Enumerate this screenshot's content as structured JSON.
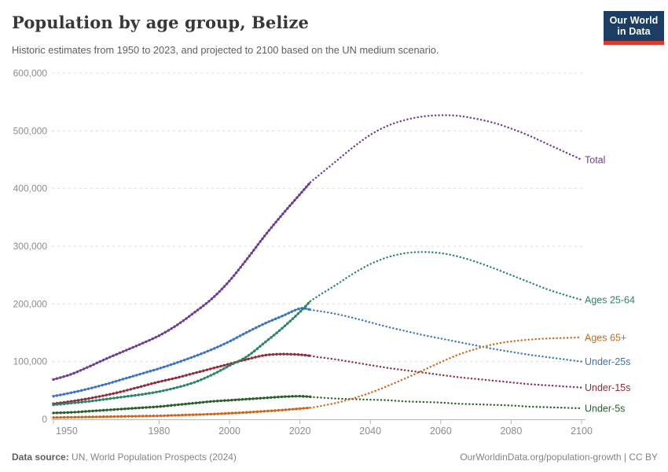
{
  "header": {
    "title": "Population by age group, Belize",
    "subtitle": "Historic estimates from 1950 to 2023, and projected to 2100 based on the UN medium scenario.",
    "logo": {
      "line1": "Our World",
      "line2": "in Data"
    }
  },
  "footer": {
    "source_label": "Data source:",
    "source_text": " UN, World Population Prospects (2024)",
    "credit": "OurWorldinData.org/population-growth | CC BY"
  },
  "chart_data": {
    "type": "line",
    "title": "Population by age group, Belize",
    "xlabel": "",
    "ylabel": "",
    "xlim": [
      1950,
      2100
    ],
    "ylim": [
      0,
      600000
    ],
    "grid": "horizontal-dashed",
    "legend_position": "right-of-line-ends",
    "projection_start_year": 2023,
    "x_ticks": [
      1950,
      1980,
      2000,
      2020,
      2040,
      2060,
      2080,
      2100
    ],
    "y_ticks": [
      0,
      100000,
      200000,
      300000,
      400000,
      500000,
      600000
    ],
    "y_tick_labels": [
      "0",
      "100,000",
      "200,000",
      "300,000",
      "400,000",
      "500,000",
      "600,000"
    ],
    "series": [
      {
        "name": "Under-25s",
        "color": "#3d73c4",
        "historic": {
          "x": [
            1950,
            1955,
            1960,
            1965,
            1970,
            1975,
            1980,
            1985,
            1990,
            1995,
            2000,
            2005,
            2010,
            2015,
            2020,
            2023
          ],
          "y": [
            40000,
            46000,
            53000,
            61000,
            70000,
            79000,
            88000,
            98000,
            109000,
            121000,
            135000,
            151000,
            166000,
            179000,
            192000,
            190000
          ]
        },
        "projected": {
          "x": [
            2023,
            2025,
            2030,
            2035,
            2040,
            2045,
            2050,
            2055,
            2060,
            2065,
            2070,
            2075,
            2080,
            2085,
            2090,
            2095,
            2100
          ],
          "y": [
            190000,
            188000,
            183000,
            176000,
            168000,
            160000,
            153000,
            146000,
            140000,
            134000,
            128000,
            122000,
            117000,
            112000,
            108000,
            104000,
            100000
          ]
        }
      },
      {
        "name": "Under-15s",
        "color": "#8e2d3b",
        "historic": {
          "x": [
            1950,
            1955,
            1960,
            1965,
            1970,
            1975,
            1980,
            1985,
            1990,
            1995,
            2000,
            2005,
            2010,
            2015,
            2020,
            2023
          ],
          "y": [
            27000,
            31000,
            36000,
            42000,
            49000,
            57000,
            65000,
            72000,
            80000,
            88000,
            96000,
            104000,
            111000,
            113000,
            112000,
            110000
          ]
        },
        "projected": {
          "x": [
            2023,
            2025,
            2030,
            2035,
            2040,
            2045,
            2050,
            2055,
            2060,
            2065,
            2070,
            2075,
            2080,
            2085,
            2090,
            2095,
            2100
          ],
          "y": [
            110000,
            108000,
            104000,
            99000,
            94000,
            89000,
            85000,
            81000,
            77000,
            73000,
            70000,
            67000,
            64000,
            61000,
            59000,
            57000,
            55000
          ]
        }
      },
      {
        "name": "Under-5s",
        "color": "#29602c",
        "historic": {
          "x": [
            1950,
            1955,
            1960,
            1965,
            1970,
            1975,
            1980,
            1985,
            1990,
            1995,
            2000,
            2005,
            2010,
            2015,
            2020,
            2023
          ],
          "y": [
            11000,
            12000,
            14000,
            16000,
            18000,
            20000,
            22000,
            25000,
            28000,
            31000,
            33000,
            35000,
            37000,
            39000,
            40000,
            39000
          ]
        },
        "projected": {
          "x": [
            2023,
            2025,
            2030,
            2035,
            2040,
            2045,
            2050,
            2055,
            2060,
            2065,
            2070,
            2075,
            2080,
            2085,
            2090,
            2095,
            2100
          ],
          "y": [
            39000,
            38000,
            36000,
            35000,
            34000,
            33000,
            31000,
            30000,
            29000,
            27000,
            26000,
            25000,
            24000,
            22000,
            21000,
            20000,
            19000
          ]
        }
      },
      {
        "name": "Ages 65+",
        "color": "#ce671d",
        "historic": {
          "x": [
            1950,
            1955,
            1960,
            1965,
            1970,
            1975,
            1980,
            1985,
            1990,
            1995,
            2000,
            2005,
            2010,
            2015,
            2020,
            2023
          ],
          "y": [
            3000,
            3500,
            4000,
            4500,
            5000,
            5500,
            6000,
            7000,
            8000,
            9000,
            10500,
            12000,
            14000,
            16000,
            18500,
            20000
          ]
        },
        "projected": {
          "x": [
            2023,
            2025,
            2030,
            2035,
            2040,
            2045,
            2050,
            2055,
            2060,
            2065,
            2070,
            2075,
            2080,
            2085,
            2090,
            2095,
            2100
          ],
          "y": [
            20000,
            22000,
            28000,
            36000,
            46000,
            58000,
            71000,
            85000,
            99000,
            112000,
            122000,
            130000,
            135000,
            138000,
            140000,
            141000,
            142000
          ]
        }
      },
      {
        "name": "Ages 25-64",
        "color": "#2c8465",
        "historic": {
          "x": [
            1950,
            1955,
            1960,
            1965,
            1970,
            1975,
            1980,
            1985,
            1990,
            1995,
            2000,
            2005,
            2010,
            2015,
            2020,
            2023
          ],
          "y": [
            25000,
            28000,
            31000,
            35000,
            39000,
            43000,
            48000,
            55000,
            64000,
            77000,
            93000,
            109000,
            133000,
            158000,
            186000,
            205000
          ]
        },
        "projected": {
          "x": [
            2023,
            2025,
            2030,
            2035,
            2040,
            2045,
            2050,
            2055,
            2060,
            2065,
            2070,
            2075,
            2080,
            2085,
            2090,
            2095,
            2100
          ],
          "y": [
            205000,
            213000,
            232000,
            252000,
            269000,
            281000,
            288000,
            290000,
            288000,
            282000,
            273000,
            262000,
            250000,
            238000,
            226000,
            216000,
            207000
          ]
        }
      },
      {
        "name": "Total",
        "color": "#6d3e91",
        "historic": {
          "x": [
            1950,
            1955,
            1960,
            1965,
            1970,
            1975,
            1980,
            1985,
            1990,
            1995,
            2000,
            2005,
            2010,
            2015,
            2020,
            2023
          ],
          "y": [
            69000,
            78000,
            91000,
            105000,
            118000,
            131000,
            145000,
            163000,
            185000,
            209000,
            240000,
            278000,
            318000,
            355000,
            390000,
            411000
          ]
        },
        "projected": {
          "x": [
            2023,
            2025,
            2030,
            2035,
            2040,
            2045,
            2050,
            2055,
            2060,
            2065,
            2070,
            2075,
            2080,
            2085,
            2090,
            2095,
            2100
          ],
          "y": [
            411000,
            421000,
            446000,
            471000,
            493000,
            509000,
            519000,
            525000,
            527000,
            526000,
            521000,
            514000,
            504000,
            492000,
            478000,
            464000,
            450000
          ]
        }
      }
    ]
  }
}
